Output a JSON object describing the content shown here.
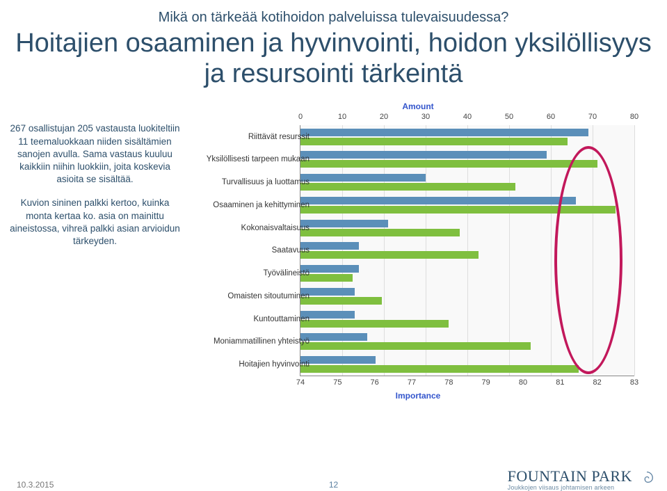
{
  "title_small": "Mikä on tärkeää kotihoidon palveluissa tulevaisuudessa?",
  "title_large": "Hoitajien osaaminen ja hyvinvointi, hoidon yksilöllisyys ja resursointi tärkeintä",
  "left": {
    "p1": "267 osallistujan 205 vastausta luokiteltiin 11 teemaluokkaan niiden sisältämien sanojen avulla. Sama vastaus kuuluu kaikkiin niihin luokkiin, joita koskevia asioita se sisältää.",
    "p2": "Kuvion sininen palkki kertoo, kuinka monta kertaa ko. asia on mainittu aineistossa, vihreä palkki asian arvioidun tärkeyden."
  },
  "chart": {
    "top_axis_label": "Amount",
    "bottom_axis_label": "Importance",
    "top_axis": {
      "min": 0,
      "max": 80,
      "ticks": [
        0,
        10,
        20,
        30,
        40,
        50,
        60,
        70,
        80
      ]
    },
    "bottom_axis": {
      "min": 74,
      "max": 83,
      "ticks": [
        74,
        75,
        76,
        77,
        78,
        79,
        80,
        81,
        82,
        83
      ]
    },
    "categories": [
      {
        "label": "Riittävät resurssit",
        "amount": 69,
        "importance": 81.2
      },
      {
        "label": "Yksilöllisesti tarpeen mukaan",
        "amount": 59,
        "importance": 82.0
      },
      {
        "label": "Turvallisuus ja luottamus",
        "amount": 30,
        "importance": 79.8
      },
      {
        "label": "Osaaminen ja kehittyminen",
        "amount": 66,
        "importance": 82.5
      },
      {
        "label": "Kokonaisvaltaisuus",
        "amount": 21,
        "importance": 78.3
      },
      {
        "label": "Saatavuus",
        "amount": 14,
        "importance": 78.8
      },
      {
        "label": "Työvälineistö",
        "amount": 14,
        "importance": 75.4
      },
      {
        "label": "Omaisten sitoutuminen",
        "amount": 13,
        "importance": 76.2
      },
      {
        "label": "Kuntouttaminen",
        "amount": 13,
        "importance": 78.0
      },
      {
        "label": "Moniammatillinen yhteistyö",
        "amount": 16,
        "importance": 80.2
      },
      {
        "label": "Hoitajien hyvinvointi",
        "amount": 18,
        "importance": 81.5
      }
    ],
    "bar_colors": {
      "amount": "#5b8fb9",
      "importance": "#7fbf3f"
    },
    "background": "#f9f9f9",
    "grid_color": "#ddd",
    "oval": {
      "color": "#c2185b",
      "cx_importance": 81.7,
      "ry_rows_span": 11
    }
  },
  "footer": {
    "date": "10.3.2015",
    "page": "12",
    "logo_main": "FOUNTAIN PARK",
    "logo_sub": "Joukkojen viisaus johtamisen arkeen"
  }
}
